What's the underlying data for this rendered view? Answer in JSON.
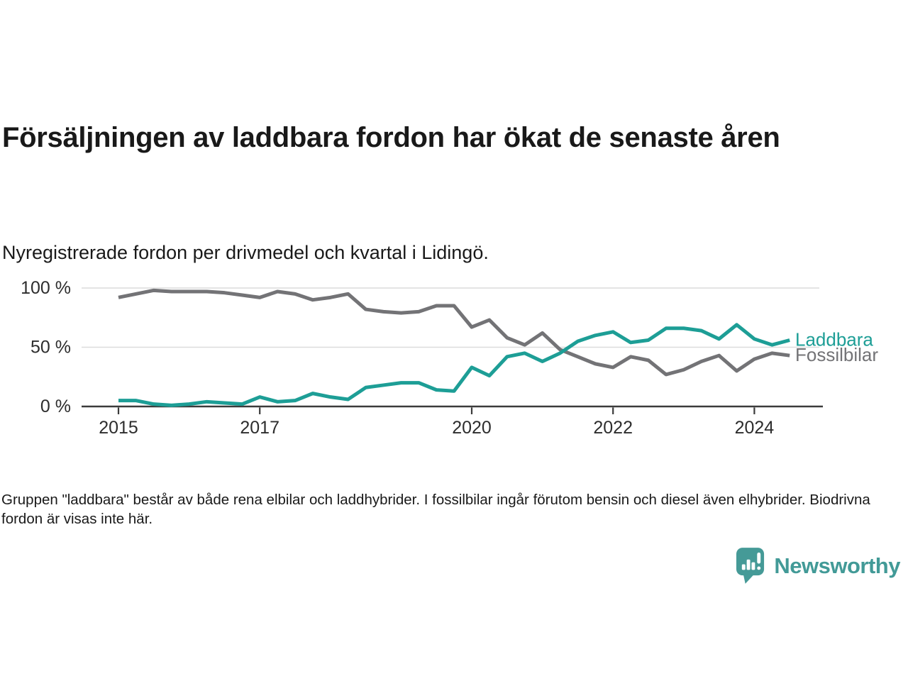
{
  "header": {
    "title": "Försäljningen av laddbara fordon har ökat de senaste åren",
    "subtitle": "Nyregistrerade fordon per drivmedel och kvartal i Lidingö."
  },
  "chart_data": {
    "type": "line",
    "title": "Försäljningen av laddbara fordon har ökat de senaste åren",
    "subtitle": "Nyregistrerade fordon per drivmedel och kvartal i Lidingö.",
    "unit": "%",
    "xlabel": "",
    "ylabel": "",
    "ylim": [
      0,
      100
    ],
    "grid": "horizontal",
    "grid_values": [
      50,
      100
    ],
    "legend_position": "line-end-labels-right",
    "x_quarters": [
      "2015 Q1",
      "2015 Q2",
      "2015 Q3",
      "2015 Q4",
      "2016 Q1",
      "2016 Q2",
      "2016 Q3",
      "2016 Q4",
      "2017 Q1",
      "2017 Q2",
      "2017 Q3",
      "2017 Q4",
      "2018 Q1",
      "2018 Q2",
      "2018 Q3",
      "2018 Q4",
      "2019 Q1",
      "2019 Q2",
      "2019 Q3",
      "2019 Q4",
      "2020 Q1",
      "2020 Q2",
      "2020 Q3",
      "2020 Q4",
      "2021 Q1",
      "2021 Q2",
      "2021 Q3",
      "2021 Q4",
      "2022 Q1",
      "2022 Q2",
      "2022 Q3",
      "2022 Q4",
      "2023 Q1",
      "2023 Q2",
      "2023 Q3",
      "2023 Q4",
      "2024 Q1",
      "2024 Q2",
      "2024 Q3"
    ],
    "series": [
      {
        "name": "Fossilbilar",
        "color": "#737376",
        "values": [
          92,
          95,
          98,
          97,
          97,
          97,
          96,
          94,
          92,
          97,
          95,
          90,
          92,
          95,
          82,
          80,
          79,
          80,
          85,
          85,
          67,
          73,
          58,
          52,
          62,
          48,
          42,
          36,
          33,
          42,
          39,
          27,
          31,
          38,
          43,
          30,
          40,
          45,
          43
        ]
      },
      {
        "name": "Laddbara",
        "color": "#1d9e96",
        "values": [
          5,
          5,
          2,
          1,
          2,
          4,
          3,
          2,
          8,
          4,
          5,
          11,
          8,
          6,
          16,
          18,
          20,
          20,
          14,
          13,
          33,
          26,
          42,
          45,
          38,
          45,
          55,
          60,
          63,
          54,
          56,
          66,
          66,
          64,
          57,
          69,
          57,
          52,
          56
        ]
      }
    ],
    "x_ticks": [
      {
        "label": "2015",
        "year": 2015
      },
      {
        "label": "2017",
        "year": 2017
      },
      {
        "label": "2020",
        "year": 2020
      },
      {
        "label": "2022",
        "year": 2022
      },
      {
        "label": "2024",
        "year": 2024
      }
    ],
    "y_ticks": [
      {
        "label": "0 %",
        "value": 0
      },
      {
        "label": "50 %",
        "value": 50
      },
      {
        "label": "100 %",
        "value": 100
      }
    ],
    "colors": {
      "grid": "#dcdcdc",
      "axis": "#3b3b3b",
      "tick_text": "#2d2d2d"
    }
  },
  "footer": {
    "note": "Gruppen \"laddbara\" består av både rena elbilar och laddhybrider. I fossilbilar ingår förutom bensin och diesel även elhybrider. Biodrivna fordon är visas inte här."
  },
  "branding": {
    "name": "Newsworthy",
    "logo_color": "#459a97",
    "icon": "newsworthy-bubble-chart-icon"
  }
}
